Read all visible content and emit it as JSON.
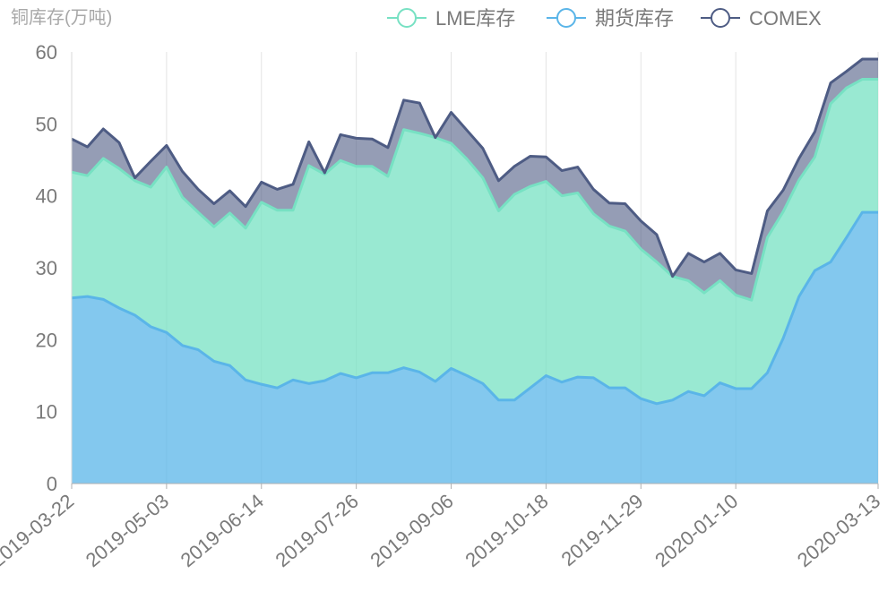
{
  "chart_data": {
    "type": "area",
    "stacked": true,
    "ylabel": "铜库存(万吨)",
    "ylim": [
      0,
      60
    ],
    "yticks": [
      0,
      10,
      20,
      30,
      40,
      50,
      60
    ],
    "grid": "vertical",
    "legend_position": "top-right",
    "x": [
      "2019-03-22",
      "2019-03-29",
      "2019-04-05",
      "2019-04-12",
      "2019-04-19",
      "2019-04-26",
      "2019-05-03",
      "2019-05-10",
      "2019-05-17",
      "2019-05-24",
      "2019-05-31",
      "2019-06-07",
      "2019-06-14",
      "2019-06-21",
      "2019-06-28",
      "2019-07-05",
      "2019-07-12",
      "2019-07-19",
      "2019-07-26",
      "2019-08-02",
      "2019-08-09",
      "2019-08-16",
      "2019-08-23",
      "2019-08-30",
      "2019-09-06",
      "2019-09-13",
      "2019-09-20",
      "2019-09-27",
      "2019-10-04",
      "2019-10-11",
      "2019-10-18",
      "2019-10-25",
      "2019-11-01",
      "2019-11-08",
      "2019-11-15",
      "2019-11-22",
      "2019-11-29",
      "2019-12-06",
      "2019-12-13",
      "2019-12-20",
      "2019-12-27",
      "2020-01-03",
      "2020-01-10",
      "2020-01-17",
      "2020-01-24",
      "2020-01-31",
      "2020-02-07",
      "2020-02-14",
      "2020-02-21",
      "2020-02-28",
      "2020-03-06",
      "2020-03-13"
    ],
    "xtick_labels": [
      "2019-03-22",
      "2019-05-03",
      "2019-06-14",
      "2019-07-26",
      "2019-09-06",
      "2019-10-18",
      "2019-11-29",
      "2020-01-10",
      "2020-03-13"
    ],
    "series": [
      {
        "name": "期货库存",
        "color": "#5ab5e8",
        "values": [
          25.8,
          26.0,
          25.6,
          24.4,
          23.4,
          21.8,
          21.0,
          19.2,
          18.6,
          17.0,
          16.4,
          14.4,
          13.8,
          13.3,
          14.4,
          13.9,
          14.3,
          15.3,
          14.7,
          15.4,
          15.4,
          16.1,
          15.5,
          14.2,
          16.0,
          15.0,
          13.9,
          11.6,
          11.6,
          13.3,
          15.0,
          14.1,
          14.8,
          14.7,
          13.3,
          13.3,
          11.8,
          11.1,
          11.6,
          12.8,
          12.2,
          14.0,
          13.2,
          13.2,
          15.4,
          20.2,
          26.0,
          29.6,
          30.8,
          34.2,
          37.7,
          37.7
        ]
      },
      {
        "name": "LME库存",
        "color": "#77e1c3",
        "values": [
          17.5,
          16.8,
          19.6,
          19.4,
          18.7,
          19.4,
          23.0,
          20.6,
          19.1,
          18.7,
          21.2,
          21.1,
          25.3,
          24.7,
          23.6,
          30.3,
          28.7,
          29.6,
          29.4,
          28.7,
          27.3,
          33.1,
          33.2,
          33.9,
          31.3,
          30.1,
          28.6,
          26.3,
          28.6,
          28.0,
          27.0,
          25.9,
          25.6,
          22.8,
          22.5,
          21.8,
          20.8,
          19.7,
          17.2,
          15.4,
          14.3,
          14.2,
          13.0,
          12.3,
          18.8,
          17.6,
          16.2,
          15.8,
          22.0,
          20.8,
          18.5,
          18.5
        ]
      },
      {
        "name": "COMEX",
        "color": "#4e5c84",
        "values": [
          4.6,
          4.0,
          4.1,
          3.6,
          0.4,
          3.6,
          3.0,
          3.6,
          3.2,
          3.2,
          3.1,
          3.0,
          2.8,
          2.9,
          3.6,
          3.3,
          0.2,
          3.6,
          3.9,
          3.8,
          4.0,
          4.1,
          4.2,
          0.0,
          4.3,
          4.0,
          4.1,
          4.2,
          3.9,
          4.2,
          3.4,
          3.5,
          3.6,
          3.4,
          3.2,
          3.8,
          3.9,
          3.8,
          0.0,
          3.8,
          4.3,
          3.8,
          3.5,
          3.7,
          3.7,
          3.0,
          3.0,
          3.5,
          2.9,
          2.3,
          2.8,
          2.8
        ]
      }
    ]
  }
}
